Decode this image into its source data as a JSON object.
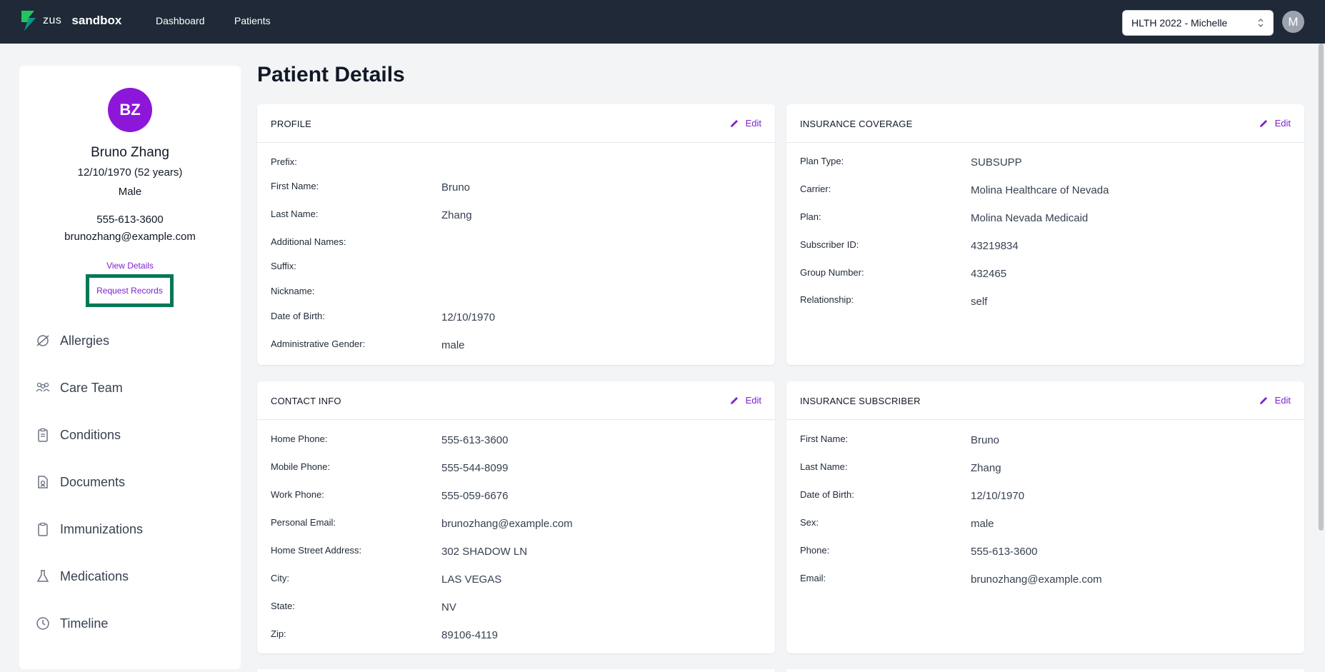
{
  "nav": {
    "logo_zus": "zus",
    "logo_sandbox": "sandbox",
    "links": [
      "Dashboard",
      "Patients"
    ],
    "org_selected": "HLTH 2022 - Michelle",
    "user_initial": "M"
  },
  "colors": {
    "topbar": "#1f2937",
    "accent": "#7e22ce",
    "avatar": "#8d17d8",
    "highlight_border": "#047857"
  },
  "patient": {
    "initials": "BZ",
    "name": "Bruno Zhang",
    "dob_age": "12/10/1970 (52 years)",
    "sex": "Male",
    "phone": "555-613-3600",
    "email": "brunozhang@example.com",
    "view_details": "View Details",
    "request_records": "Request Records"
  },
  "sidebar_nav": [
    {
      "label": "Allergies",
      "icon": "allergies-icon"
    },
    {
      "label": "Care Team",
      "icon": "care-team-icon"
    },
    {
      "label": "Conditions",
      "icon": "clipboard-icon"
    },
    {
      "label": "Documents",
      "icon": "document-icon"
    },
    {
      "label": "Immunizations",
      "icon": "clipboard-icon"
    },
    {
      "label": "Medications",
      "icon": "flask-icon"
    },
    {
      "label": "Timeline",
      "icon": "clock-icon"
    }
  ],
  "page_title": "Patient Details",
  "edit_label": "Edit",
  "profile": {
    "title": "PROFILE",
    "fields": [
      {
        "label": "Prefix:",
        "value": ""
      },
      {
        "label": "First Name:",
        "value": "Bruno"
      },
      {
        "label": "Last Name:",
        "value": "Zhang"
      },
      {
        "label": "Additional Names:",
        "value": ""
      },
      {
        "label": "Suffix:",
        "value": ""
      },
      {
        "label": "Nickname:",
        "value": ""
      },
      {
        "label": "Date of Birth:",
        "value": "12/10/1970"
      },
      {
        "label": "Administrative Gender:",
        "value": "male"
      }
    ]
  },
  "insurance_coverage": {
    "title": "INSURANCE COVERAGE",
    "fields": [
      {
        "label": "Plan Type:",
        "value": "SUBSUPP"
      },
      {
        "label": "Carrier:",
        "value": "Molina Healthcare of Nevada"
      },
      {
        "label": "Plan:",
        "value": "Molina Nevada Medicaid"
      },
      {
        "label": "Subscriber ID:",
        "value": "43219834"
      },
      {
        "label": "Group Number:",
        "value": "432465"
      },
      {
        "label": "Relationship:",
        "value": "self"
      }
    ]
  },
  "contact_info": {
    "title": "CONTACT INFO",
    "fields": [
      {
        "label": "Home Phone:",
        "value": "555-613-3600"
      },
      {
        "label": "Mobile Phone:",
        "value": "555-544-8099"
      },
      {
        "label": "Work Phone:",
        "value": "555-059-6676"
      },
      {
        "label": "Personal Email:",
        "value": "brunozhang@example.com"
      },
      {
        "label": "Home Street Address:",
        "value": "302 SHADOW LN"
      },
      {
        "label": "City:",
        "value": "LAS VEGAS"
      },
      {
        "label": "State:",
        "value": "NV"
      },
      {
        "label": "Zip:",
        "value": "89106-4119"
      }
    ]
  },
  "insurance_subscriber": {
    "title": "INSURANCE SUBSCRIBER",
    "fields": [
      {
        "label": "First Name:",
        "value": "Bruno"
      },
      {
        "label": "Last Name:",
        "value": "Zhang"
      },
      {
        "label": "Date of Birth:",
        "value": "12/10/1970"
      },
      {
        "label": "Sex:",
        "value": "male"
      },
      {
        "label": "Phone:",
        "value": "555-613-3600"
      },
      {
        "label": "Email:",
        "value": "brunozhang@example.com"
      }
    ]
  }
}
